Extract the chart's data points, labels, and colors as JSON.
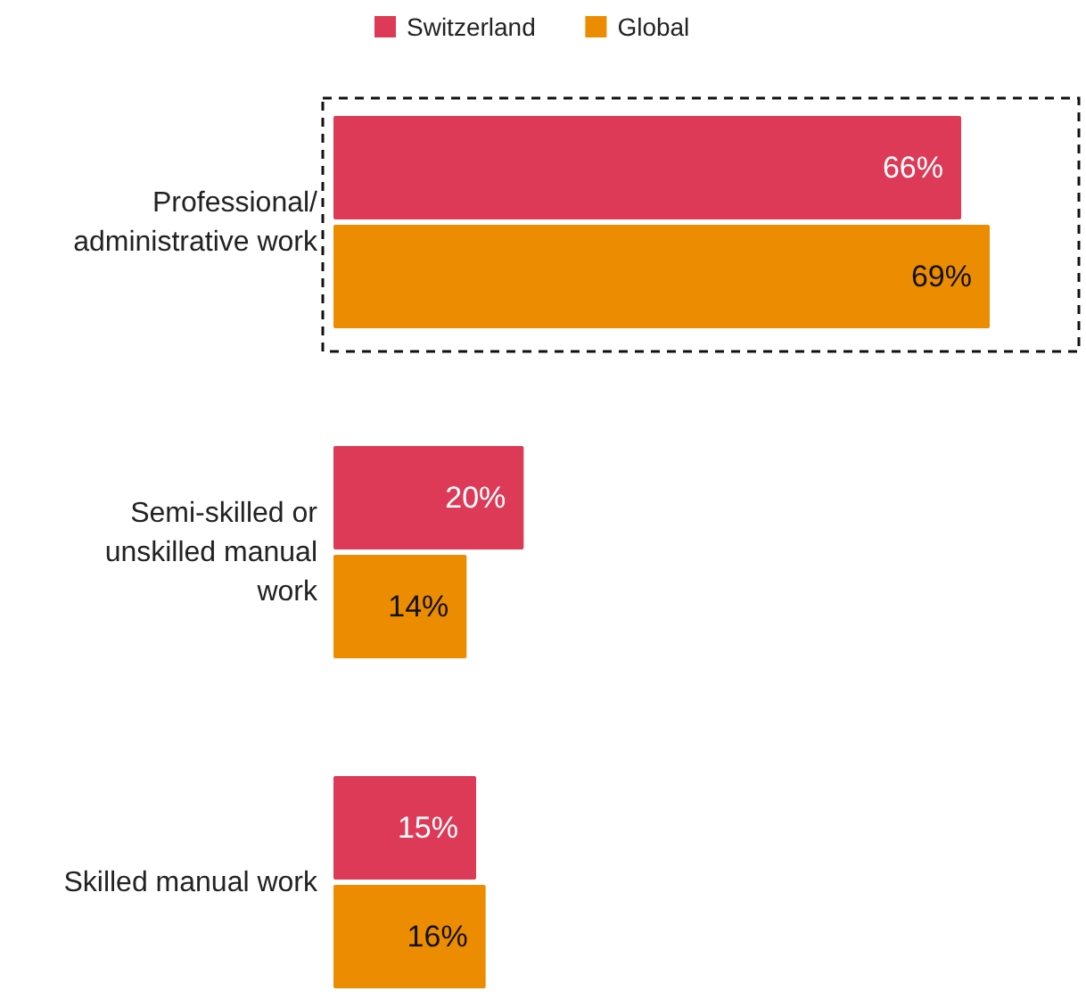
{
  "chart_data": {
    "type": "bar",
    "orientation": "horizontal",
    "legend": "top",
    "categories": [
      "Professional/ administrative work",
      "Semi-skilled or unskilled manual work",
      "Skilled manual work"
    ],
    "series": [
      {
        "name": "Switzerland",
        "color": "#dc3a57",
        "values": [
          66,
          20,
          15
        ],
        "value_labels": [
          "66%",
          "20%",
          "15%"
        ]
      },
      {
        "name": "Global",
        "color": "#ec8c00",
        "values": [
          69,
          14,
          16
        ],
        "value_labels": [
          "69%",
          "14%",
          "16%"
        ]
      }
    ]
  }
}
